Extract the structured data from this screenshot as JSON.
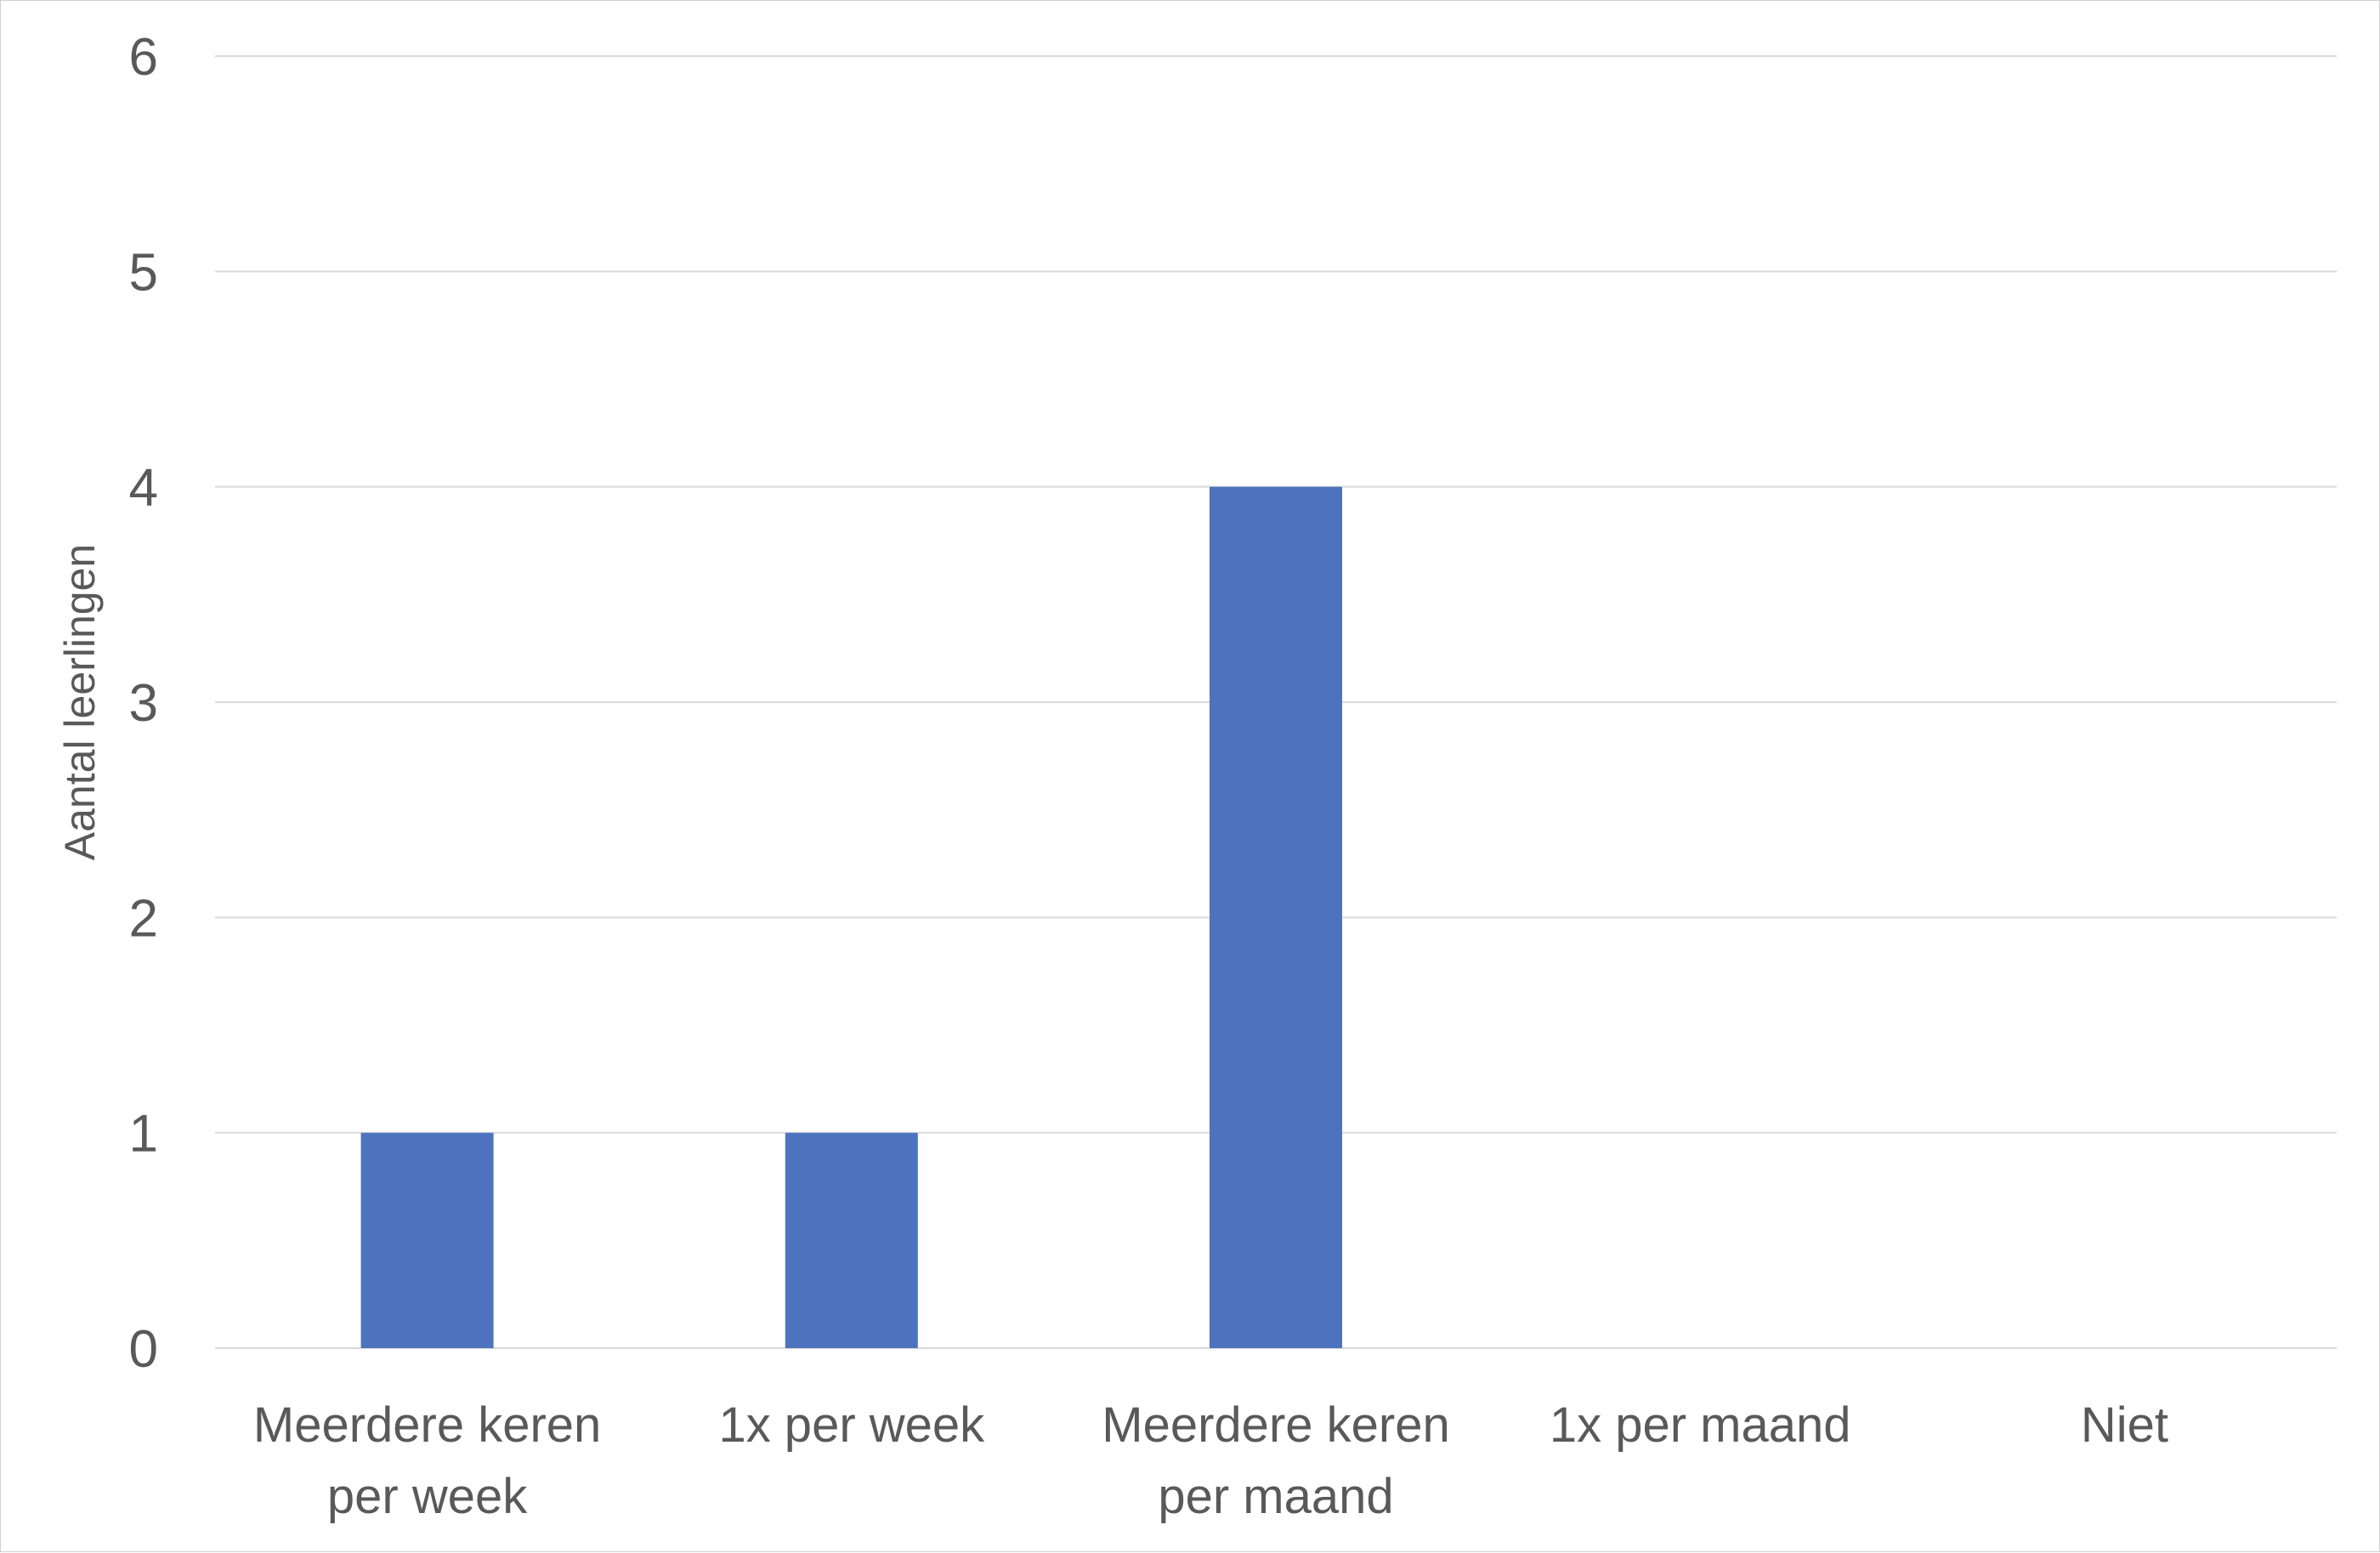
{
  "chart_data": {
    "type": "bar",
    "categories": [
      [
        "Meerdere keren",
        "per week"
      ],
      [
        "1x per week"
      ],
      [
        "Meerdere keren",
        "per maand"
      ],
      [
        "1x per maand"
      ],
      [
        "Niet"
      ]
    ],
    "values": [
      1,
      1,
      4,
      0,
      0
    ],
    "title": "",
    "xlabel": "",
    "ylabel": "Aantal leerlingen",
    "ylim": [
      0,
      6
    ],
    "yticks": [
      "0",
      "1",
      "2",
      "3",
      "4",
      "5",
      "6"
    ],
    "grid": true,
    "legend": "none",
    "bar_color": "#4e73be",
    "grid_color": "#d9d9d9",
    "text_color": "#595959"
  }
}
